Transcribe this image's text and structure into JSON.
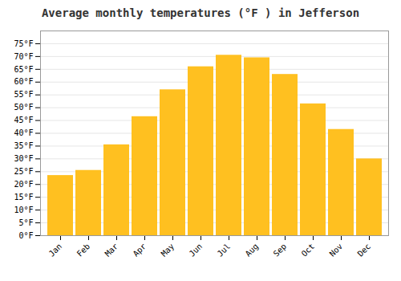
{
  "chart_data": {
    "type": "bar",
    "title": "Average monthly temperatures (°F ) in Jefferson",
    "categories": [
      "Jan",
      "Feb",
      "Mar",
      "Apr",
      "May",
      "Jun",
      "Jul",
      "Aug",
      "Sep",
      "Oct",
      "Nov",
      "Dec"
    ],
    "values": [
      23.5,
      25.5,
      35.5,
      46.5,
      57,
      66,
      70.5,
      69.5,
      63,
      51.5,
      41.5,
      30
    ],
    "color": "#FFC020",
    "ylim": [
      0,
      80
    ],
    "yticks": [
      {
        "value": 0,
        "label": "0°F"
      },
      {
        "value": 5,
        "label": "5°F"
      },
      {
        "value": 10,
        "label": "10°F"
      },
      {
        "value": 15,
        "label": "15°F"
      },
      {
        "value": 20,
        "label": "20°F"
      },
      {
        "value": 25,
        "label": "25°F"
      },
      {
        "value": 30,
        "label": "30°F"
      },
      {
        "value": 35,
        "label": "35°F"
      },
      {
        "value": 40,
        "label": "40°F"
      },
      {
        "value": 45,
        "label": "45°F"
      },
      {
        "value": 50,
        "label": "50°F"
      },
      {
        "value": 55,
        "label": "55°F"
      },
      {
        "value": 60,
        "label": "60°F"
      },
      {
        "value": 65,
        "label": "65°F"
      },
      {
        "value": 70,
        "label": "70°F"
      },
      {
        "value": 75,
        "label": "75°F"
      }
    ],
    "grid": true
  }
}
